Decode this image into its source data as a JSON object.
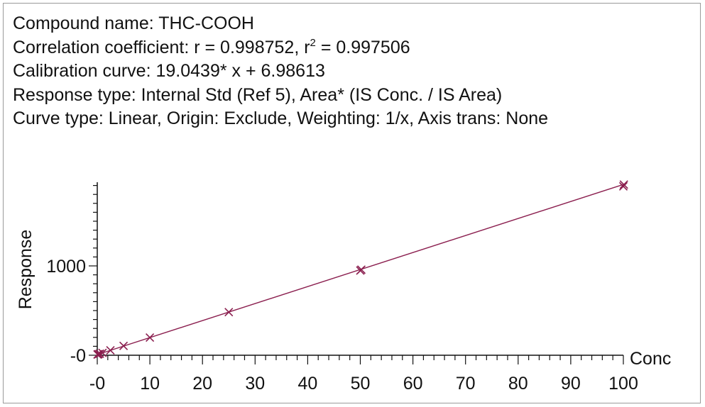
{
  "header": {
    "compound_label": "Compound name:",
    "compound_value": "THC-COOH",
    "correlation_prefix": "Correlation coefficient: r = 0.998752, r",
    "correlation_sup": "2",
    "correlation_suffix": " = 0.997506",
    "calibration": "Calibration curve: 19.0439* x + 6.98613",
    "response_type": "Response type: Internal Std (Ref 5), Area* (IS Conc. / IS Area)",
    "curve_type": "Curve type: Linear, Origin: Exclude, Weighting: 1/x, Axis trans: None"
  },
  "chart_data": {
    "type": "scatter",
    "title": "",
    "xlabel": "Conc",
    "ylabel": "Response",
    "xlim": [
      0,
      100
    ],
    "ylim": [
      0,
      1900
    ],
    "x_ticks": [
      "-0",
      "10",
      "20",
      "30",
      "40",
      "50",
      "60",
      "70",
      "80",
      "90",
      "100"
    ],
    "y_ticks": [
      "-0",
      "1000"
    ],
    "fit_line": {
      "slope": 19.0439,
      "intercept": 6.98613
    },
    "series": [
      {
        "color": "#8b1f4f",
        "marker": "x",
        "x": [
          0.05,
          0.1,
          0.25,
          0.5,
          1,
          2.5,
          5,
          10,
          25,
          50,
          50.2,
          100,
          100.1
        ],
        "y": [
          8,
          9,
          12,
          17,
          26,
          55,
          105,
          198,
          483,
          948,
          958,
          1890,
          1910
        ]
      }
    ]
  }
}
